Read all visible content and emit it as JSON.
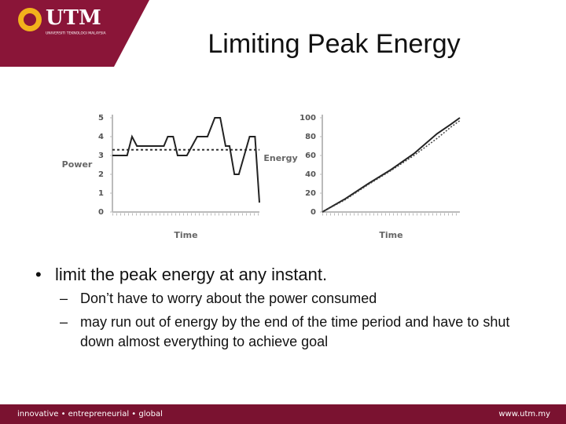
{
  "header": {
    "logo": "UTM",
    "university": "UNIVERSITI TEKNOLOGI MALAYSIA",
    "title": "Limiting Peak Energy"
  },
  "chart_data": [
    {
      "type": "line",
      "ylabel": "Power",
      "xlabel": "Time",
      "xlim": [
        0,
        30
      ],
      "ylim": [
        0,
        5
      ],
      "yticks": [
        0,
        1,
        2,
        3,
        4,
        5
      ],
      "reference_line": 3.3,
      "x": [
        0,
        3,
        4,
        5,
        10.5,
        11.3,
        12.4,
        13.3,
        15.2,
        17.3,
        19.4,
        20.9,
        22,
        23.1,
        23.9,
        24.9,
        25.8,
        28,
        29.1,
        30
      ],
      "series": [
        {
          "color": "#222",
          "values": [
            3,
            3,
            4,
            3.5,
            3.5,
            4,
            4,
            3,
            3,
            4,
            4,
            5,
            5,
            3.5,
            3.5,
            2,
            2,
            4,
            4,
            0.5
          ]
        }
      ]
    },
    {
      "type": "line",
      "ylabel": "Energy",
      "xlabel": "Time",
      "xlim": [
        0,
        30
      ],
      "ylim": [
        0,
        100
      ],
      "yticks": [
        0,
        20,
        40,
        60,
        80,
        100
      ],
      "x": [
        0,
        5,
        10,
        15,
        20,
        25,
        28,
        30
      ],
      "series": [
        {
          "color": "#222",
          "values": [
            0,
            14,
            30,
            45,
            62,
            83,
            93,
            100
          ]
        },
        {
          "color": "#444",
          "dashed": true,
          "values": [
            0,
            13,
            29,
            44,
            60,
            78,
            90,
            97
          ]
        }
      ]
    }
  ],
  "bullets": [
    {
      "text": "limit the peak energy at any instant.",
      "sub": [
        "Don’t have to worry about the power consumed",
        "may run out of energy by the end of the time period and have to shut down almost everything to achieve goal"
      ]
    }
  ],
  "footer": {
    "tagline": "innovative • entrepreneurial • global",
    "url": "www.utm.my"
  }
}
